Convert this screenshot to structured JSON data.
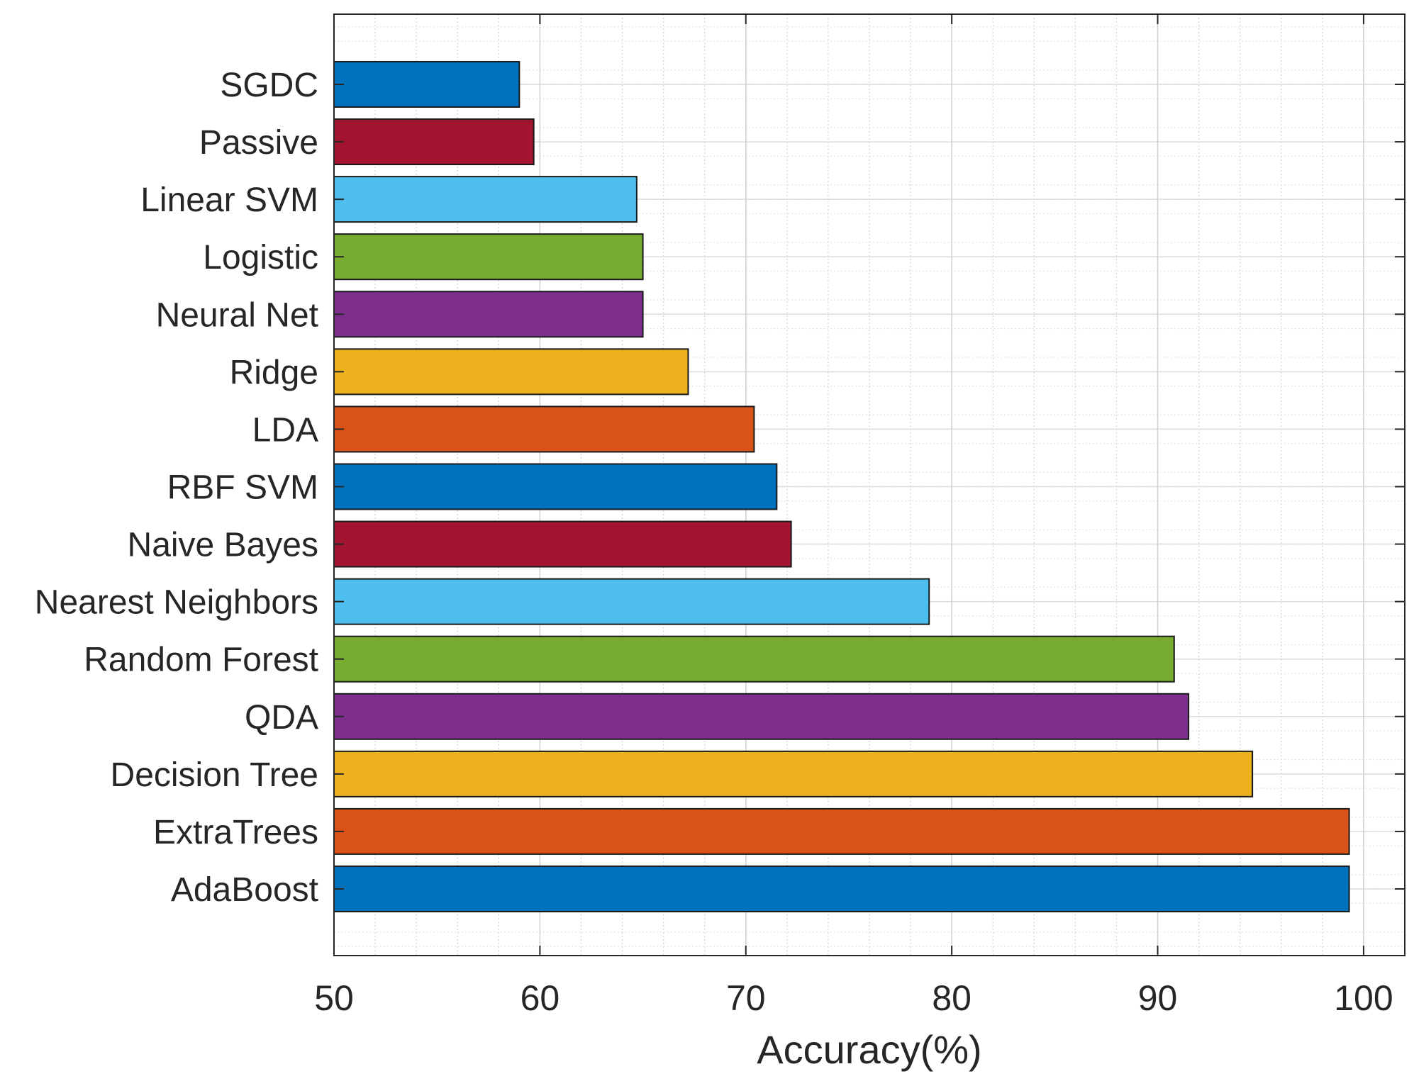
{
  "chart_data": {
    "type": "bar",
    "orientation": "horizontal",
    "title": "",
    "xlabel": "Accuracy(%)",
    "ylabel": "",
    "xlim": [
      50,
      102
    ],
    "xticks": [
      50,
      60,
      70,
      80,
      90,
      100
    ],
    "grid": true,
    "minor_grid": true,
    "categories": [
      "SGDC",
      "Passive",
      "Linear SVM",
      "Logistic",
      "Neural Net",
      "Ridge",
      "LDA",
      "RBF SVM",
      "Naive Bayes",
      "Nearest Neighbors",
      "Random Forest",
      "QDA",
      "Decision Tree",
      "ExtraTrees",
      "AdaBoost"
    ],
    "values": [
      59.0,
      59.7,
      64.7,
      65.0,
      65.0,
      67.2,
      70.4,
      71.5,
      72.2,
      78.9,
      90.8,
      91.5,
      94.6,
      99.3,
      99.3
    ],
    "colors": [
      "#0072BD",
      "#A2142F",
      "#4DBEEE",
      "#77AC30",
      "#7E2F8E",
      "#EDB120",
      "#D95319",
      "#0072BD",
      "#A2142F",
      "#4DBEEE",
      "#77AC30",
      "#7E2F8E",
      "#EDB120",
      "#D95319",
      "#0072BD"
    ]
  }
}
